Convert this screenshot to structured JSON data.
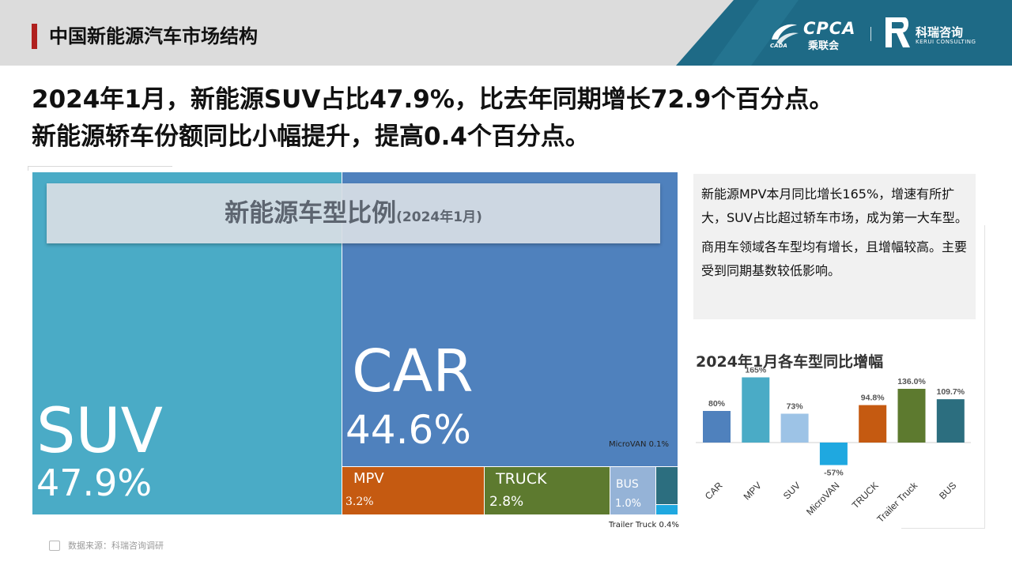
{
  "header": {
    "title": "中国新能源汽车市场结构"
  },
  "logos": {
    "cpca_en": "CPCA",
    "cpca_cn": "乘联会",
    "cpca_small": "CADA",
    "kerui_cn": "科瑞咨询",
    "kerui_en": "KERUI CONSULTING"
  },
  "headline": {
    "line1": "2024年1月，新能源SUV占比47.9%，比去年同期增长72.9个百分点。",
    "line2": "新能源轿车份额同比小幅提升，提高0.4个百分点。"
  },
  "treemap": {
    "banner_title": "新能源车型比例",
    "banner_subtitle": "(2024年1月)"
  },
  "note": {
    "p1": "新能源MPV本月同比增长165%，增速有所扩大，SUV占比超过轿车市场，成为第一大车型。",
    "p2": "商用车领域各车型均有增长，且增幅较高。主要受到同期基数较低影响。"
  },
  "source": "数据来源：科瑞咨询调研",
  "colors": {
    "suv": "#4aabc6",
    "car": "#4f81bd",
    "mpv": "#c55a11",
    "truck": "#5d7a2f",
    "bus": "#95b3d7",
    "microvan": "#1fa8e0",
    "trailer": "#2c6e7f",
    "topbar": "#dcdcdc",
    "brand": "#1e6a86"
  },
  "chart_data": [
    {
      "type": "treemap",
      "title": "新能源车型比例",
      "subtitle": "(2024年1月)",
      "items": [
        {
          "key": "suv",
          "name": "SUV",
          "label": "47.9%",
          "value": 47.9,
          "color": "#4aabc6"
        },
        {
          "key": "car",
          "name": "CAR",
          "label": "44.6%",
          "value": 44.6,
          "color": "#4f81bd"
        },
        {
          "key": "mpv",
          "name": "MPV",
          "label": "3.2%",
          "value": 3.2,
          "color": "#c55a11"
        },
        {
          "key": "truck",
          "name": "TRUCK",
          "label": "2.8%",
          "value": 2.8,
          "color": "#5d7a2f"
        },
        {
          "key": "bus",
          "name": "BUS",
          "label": "1.0%",
          "value": 1.0,
          "color": "#95b3d7"
        },
        {
          "key": "trailer",
          "name": "Trailer Truck",
          "label": "0.4%",
          "value": 0.4,
          "color": "#2c6e7f"
        },
        {
          "key": "microvan",
          "name": "MicroVAN",
          "label": "0.1%",
          "value": 0.1,
          "color": "#1fa8e0"
        }
      ]
    },
    {
      "type": "bar",
      "title": "2024年1月各车型同比增幅",
      "categories": [
        "CAR",
        "MPV",
        "SUV",
        "MicroVAN",
        "TRUCK",
        "Trailer Truck",
        "BUS"
      ],
      "values": [
        80,
        165,
        73,
        -57,
        94.8,
        136.0,
        109.7
      ],
      "labels": [
        "80%",
        "165%",
        "73%",
        "-57%",
        "94.8%",
        "136.0%",
        "109.7%"
      ],
      "colors": [
        "#4f81bd",
        "#4aabc6",
        "#9dc3e6",
        "#1fa8e0",
        "#c55a11",
        "#5d7a2f",
        "#2c6e7f"
      ],
      "ylim": [
        -60,
        170
      ],
      "grid": false,
      "legend": "none"
    }
  ]
}
